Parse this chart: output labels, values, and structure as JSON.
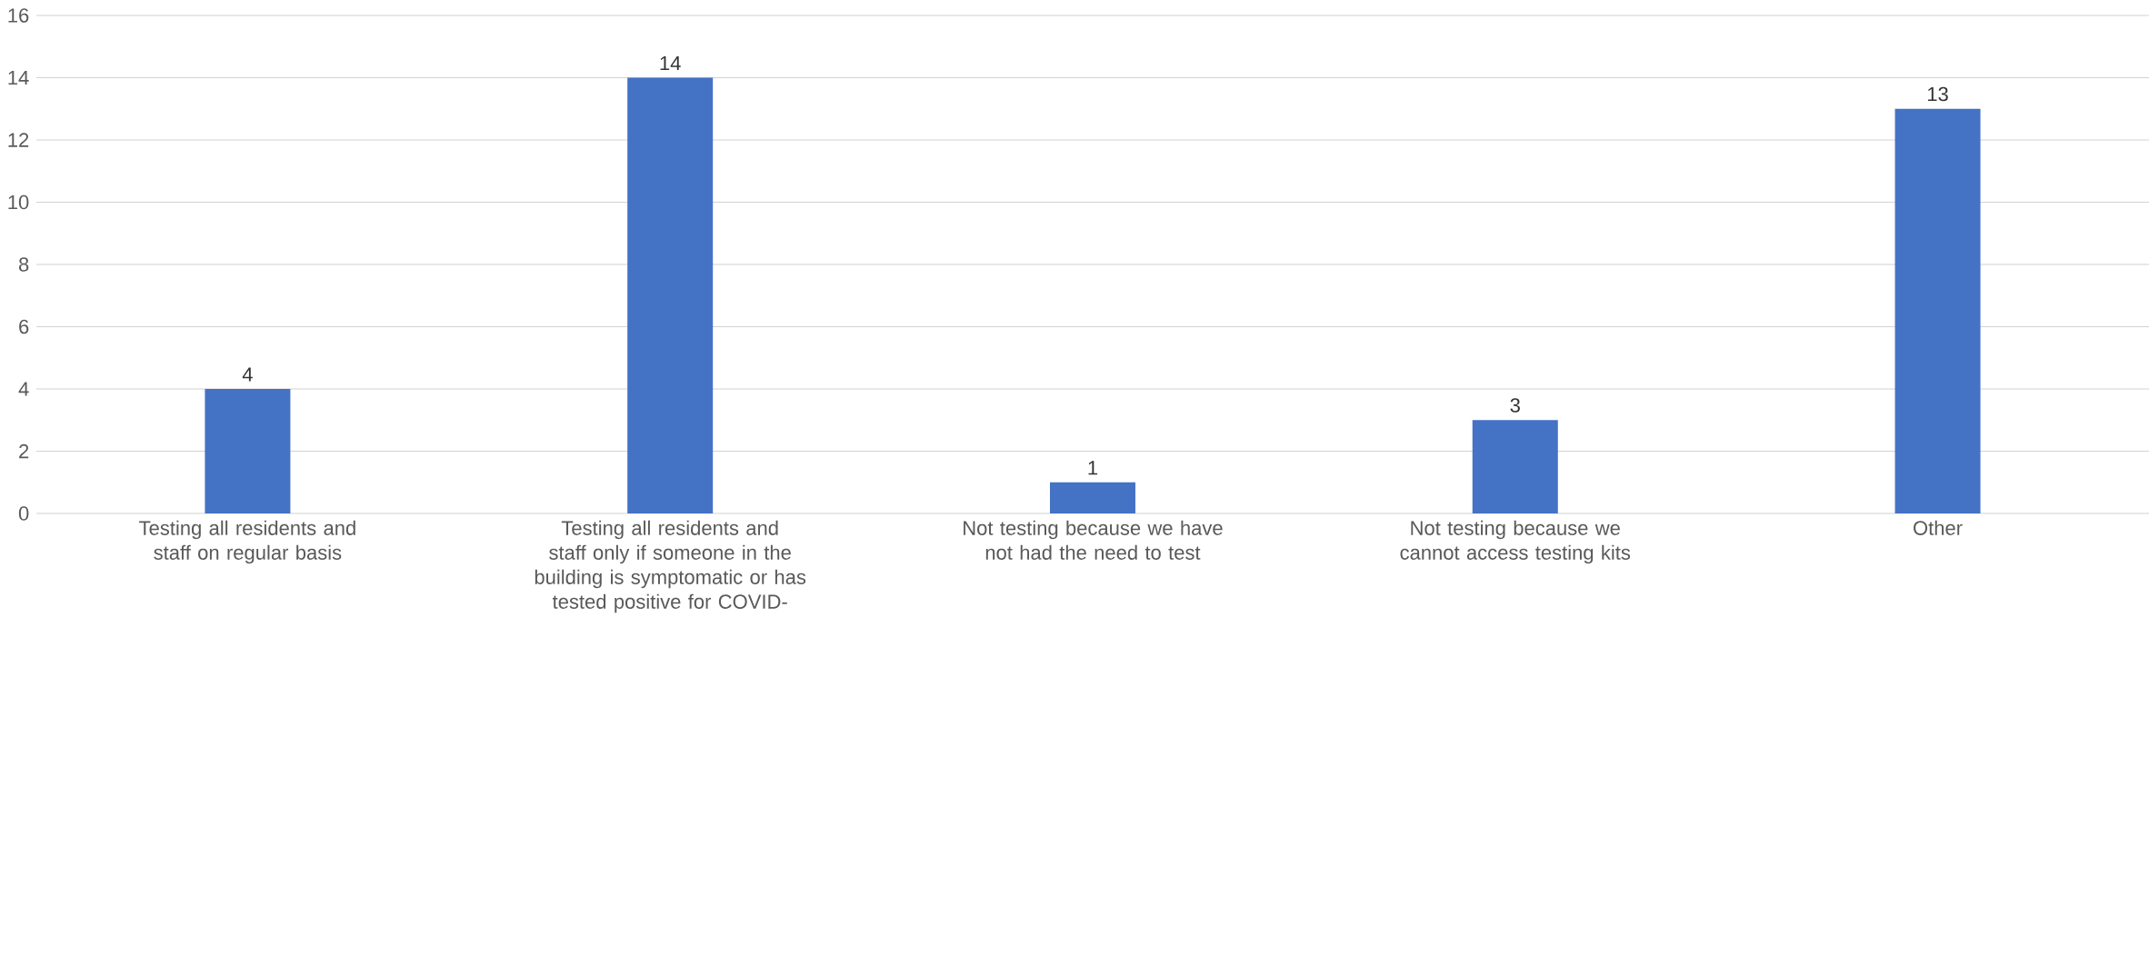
{
  "chart_data": {
    "type": "bar",
    "categories": [
      "Testing all residents and staff on regular basis",
      "Testing all residents and staff only if someone in the building is symptomatic or has tested positive for COVID-",
      "Not testing because we have not had the need to test",
      "Not testing because we cannot access testing kits",
      "Other"
    ],
    "values": [
      4,
      14,
      1,
      3,
      13
    ],
    "color": "#4472c4",
    "ylim": [
      0,
      16
    ],
    "yticks": [
      0,
      2,
      4,
      6,
      8,
      10,
      12,
      14,
      16
    ],
    "grid": "y",
    "data_labels": true
  }
}
